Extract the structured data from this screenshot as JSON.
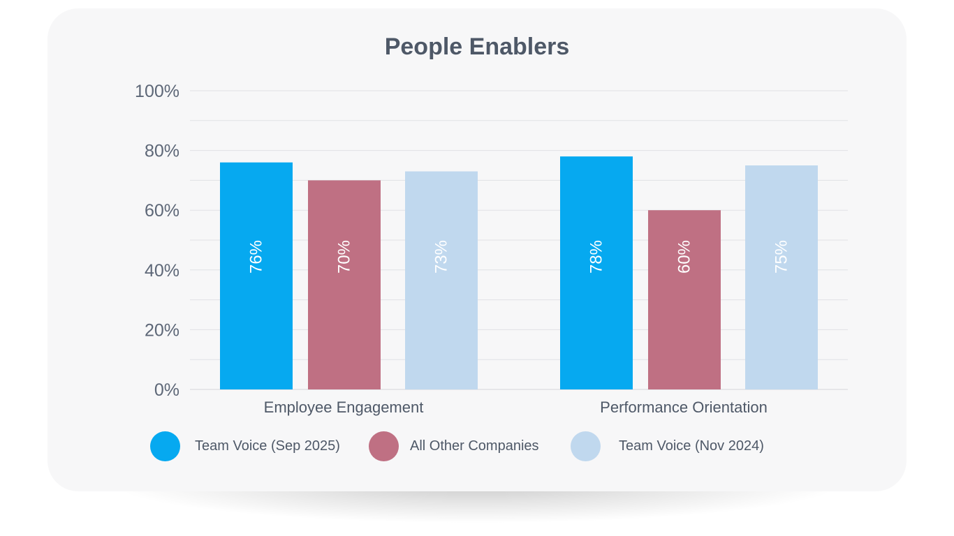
{
  "chart_data": {
    "type": "bar",
    "title": "People Enablers",
    "categories": [
      "Employee Engagement",
      "Performance Orientation"
    ],
    "series": [
      {
        "name": "Team Voice (Sep 2025)",
        "values": [
          76,
          78
        ],
        "labels": [
          "76%",
          "78%"
        ],
        "color": "#06a9f0"
      },
      {
        "name": "All Other Companies",
        "values": [
          70,
          60
        ],
        "labels": [
          "70%",
          "60%"
        ],
        "color": "#bf7083"
      },
      {
        "name": "Team Voice (Nov 2024)",
        "values": [
          73,
          75
        ],
        "labels": [
          "73%",
          "75%"
        ],
        "color": "#c0d8ee"
      }
    ],
    "ylim": [
      0,
      100
    ],
    "yticks": [
      0,
      20,
      40,
      60,
      80,
      100
    ],
    "ytick_labels": [
      "0%",
      "20%",
      "40%",
      "60%",
      "80%",
      "100%"
    ],
    "grid": true,
    "legend": "bottom"
  }
}
